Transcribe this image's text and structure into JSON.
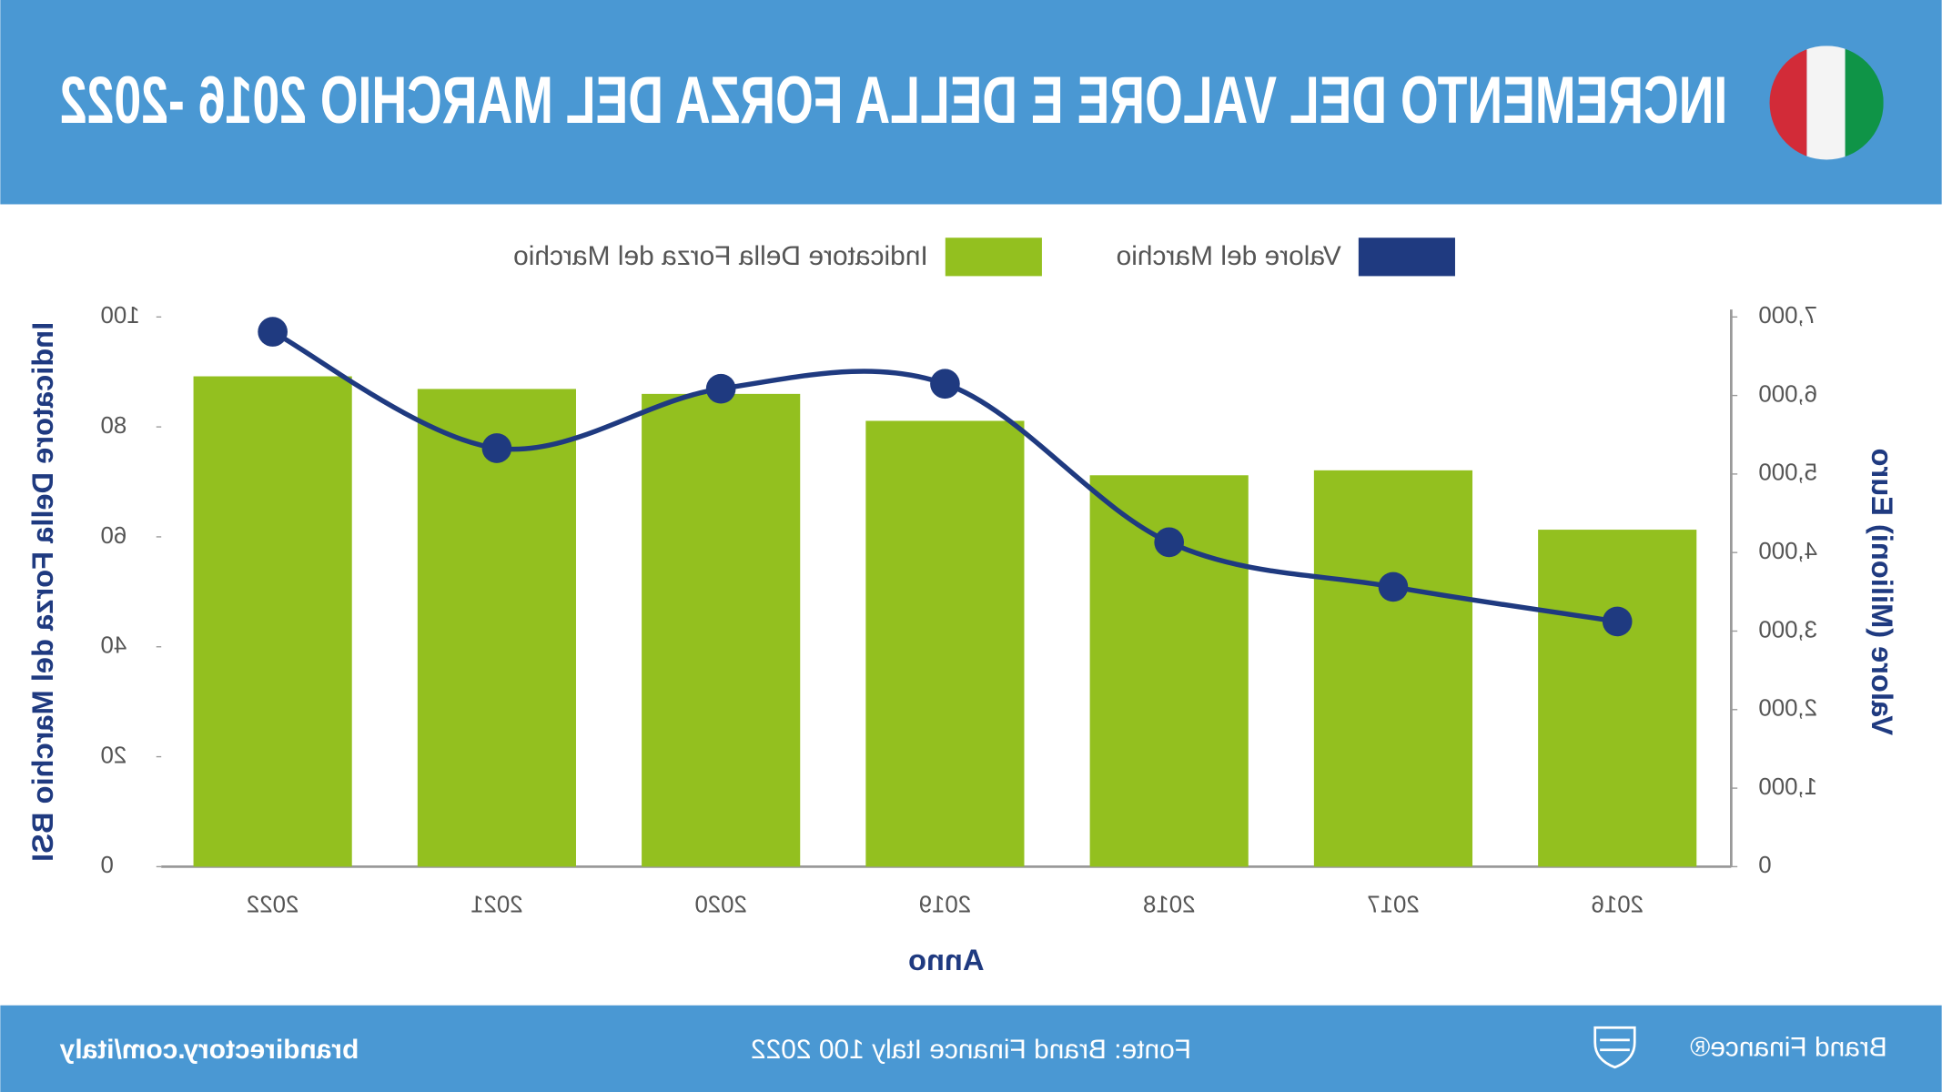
{
  "chart_data": {
    "type": "combo",
    "title": "INCREMENTO DEL VALORE E DELLA FORZA DEL MARCHIO 2016 -2022",
    "x_label": "Anno",
    "y_label": "Valore (Milioni) Euro",
    "y2_label": "Indicatore Della Forza del Marchio BSI",
    "categories": [
      "2016",
      "2017",
      "2018",
      "2019",
      "2020",
      "2021",
      "2022"
    ],
    "series": [
      {
        "name": "Valore del Marchio",
        "type": "line",
        "color": "#1f3a80",
        "values": [
          3122,
          3563,
          4131,
          6149,
          6086,
          5329,
          6811
        ]
      },
      {
        "name": "Indicatore Della Forza del Marchio",
        "type": "bar",
        "axis": "y2",
        "color": "#93c01f",
        "values": [
          61.3,
          72.1,
          71.2,
          81.1,
          86.0,
          86.9,
          89.2
        ]
      }
    ],
    "ylim": [
      0,
      7000
    ],
    "yticks": [
      0,
      {
        "value": 1000,
        "label": "1,000"
      },
      {
        "value": 2000,
        "label": "2,000"
      },
      {
        "value": 3000,
        "label": "3,000"
      },
      {
        "value": 4000,
        "label": "4,000"
      },
      {
        "value": 5000,
        "label": "5,000"
      },
      {
        "value": 6000,
        "label": "6,000"
      },
      {
        "value": 7000,
        "label": "7,000"
      }
    ],
    "y2lim": [
      0,
      100
    ],
    "y2ticks": [
      0,
      20,
      40,
      60,
      80,
      100
    ],
    "grid": false,
    "legend": "top",
    "source": "Fonte: Brand Finance Italy 100 2022",
    "website": "brandirectory.com/italy",
    "brand": "Brand Finance®"
  }
}
